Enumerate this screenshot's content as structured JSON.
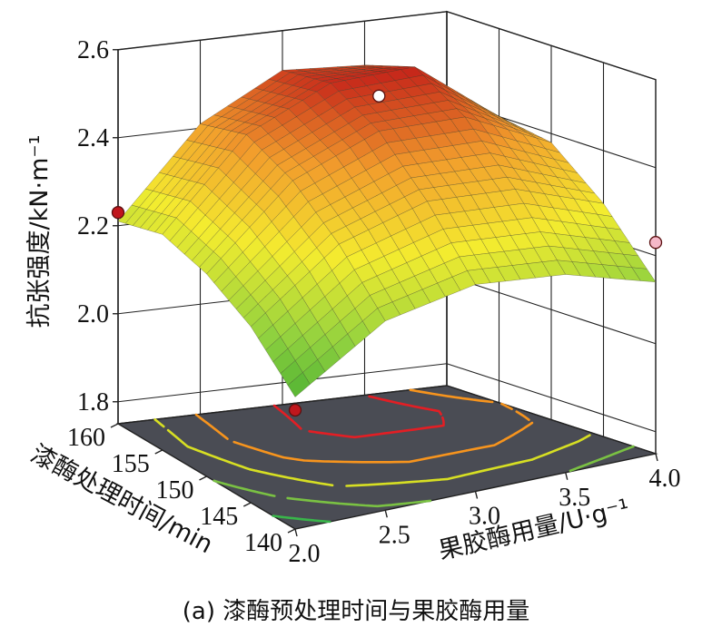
{
  "chart_data": {
    "type": "surface",
    "caption": "(a) 漆酶预处理时间与果胶酶用量",
    "zlabel": "抗张强度/kN·m⁻¹",
    "xlabel": "果胶酶用量/U·g⁻¹",
    "ylabel": "漆酶处理时间/min",
    "x_ticks": [
      "2.0",
      "2.5",
      "3.0",
      "3.5",
      "4.0"
    ],
    "y_ticks": [
      "140",
      "145",
      "150",
      "155",
      "160"
    ],
    "z_ticks": [
      "1.8",
      "2.0",
      "2.2",
      "2.4",
      "2.6"
    ],
    "xlim": [
      2.0,
      4.0
    ],
    "ylim": [
      140,
      160
    ],
    "zlim": [
      1.75,
      2.6
    ],
    "surface": {
      "x": [
        2.0,
        2.5,
        3.0,
        3.5,
        4.0
      ],
      "y": [
        140,
        145,
        150,
        155,
        160
      ],
      "z": [
        [
          2.05,
          2.18,
          2.22,
          2.2,
          2.14
        ],
        [
          2.15,
          2.3,
          2.36,
          2.35,
          2.28
        ],
        [
          2.21,
          2.39,
          2.47,
          2.47,
          2.38
        ],
        [
          2.24,
          2.44,
          2.53,
          2.54,
          2.4
        ],
        [
          2.21,
          2.41,
          2.51,
          2.5,
          2.32
        ]
      ]
    },
    "design_points": [
      {
        "x": 2.0,
        "y": 160,
        "z": 2.23,
        "color": "#c0171d"
      },
      {
        "x": 2.0,
        "y": 140,
        "z": 2.02,
        "color": "#c0171d"
      },
      {
        "x": 3.0,
        "y": 150,
        "z": 2.55,
        "color": "#ffffff"
      },
      {
        "x": 4.0,
        "y": 140,
        "z": 2.23,
        "color": "#f5b8c8"
      }
    ],
    "contour_levels": [
      2.1,
      2.2,
      2.3,
      2.4,
      2.5
    ],
    "contour_colors": [
      "#39b54a",
      "#7ac143",
      "#d7df23",
      "#f7941d",
      "#e31e24"
    ],
    "floor_color": "#4a4c54",
    "colormap": [
      "#2ca02c",
      "#8fd13f",
      "#f4ec2f",
      "#f29d2c",
      "#c01818"
    ],
    "grid": true
  }
}
